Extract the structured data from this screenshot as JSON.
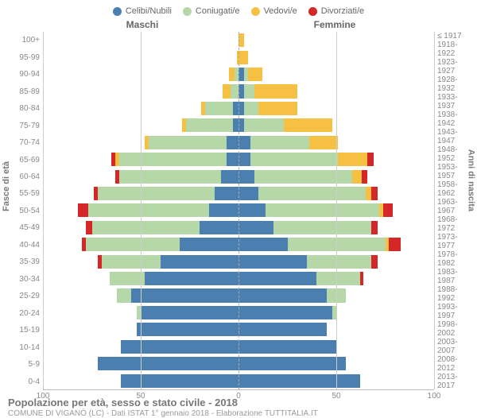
{
  "chart": {
    "type": "population-pyramid",
    "background_color": "#ffffff",
    "grid_color": "#cccccc",
    "center_line_color": "#aaaaaa",
    "text_color": "#888888",
    "title_fontsize": 13,
    "label_fontsize": 10,
    "legend_fontsize": 11,
    "xmax": 100,
    "xticks": [
      100,
      50,
      0,
      50,
      100
    ],
    "legend": [
      {
        "label": "Celibi/Nubili",
        "color": "#4a7fb0"
      },
      {
        "label": "Coniugati/e",
        "color": "#b6d7a8"
      },
      {
        "label": "Vedovi/e",
        "color": "#f6c143"
      },
      {
        "label": "Divorziati/e",
        "color": "#d62728"
      }
    ],
    "header_left": "Maschi",
    "header_right": "Femmine",
    "ylabel_left": "Fasce di età",
    "ylabel_right": "Anni di nascita",
    "age_labels": [
      "100+",
      "95-99",
      "90-94",
      "85-89",
      "80-84",
      "75-79",
      "70-74",
      "65-69",
      "60-64",
      "55-59",
      "50-54",
      "45-49",
      "40-44",
      "35-39",
      "30-34",
      "25-29",
      "20-24",
      "15-19",
      "10-14",
      "5-9",
      "0-4"
    ],
    "birth_labels": [
      "≤ 1917",
      "1918-1922",
      "1923-1927",
      "1928-1932",
      "1933-1937",
      "1938-1942",
      "1943-1947",
      "1948-1952",
      "1953-1957",
      "1958-1962",
      "1963-1967",
      "1968-1972",
      "1973-1977",
      "1978-1982",
      "1983-1987",
      "1988-1992",
      "1993-1997",
      "1998-2002",
      "2003-2007",
      "2008-2012",
      "2013-2017"
    ],
    "rows": [
      {
        "m": [
          0,
          0,
          0,
          0
        ],
        "f": [
          0,
          0,
          3,
          0
        ]
      },
      {
        "m": [
          0,
          0,
          1,
          0
        ],
        "f": [
          0,
          0,
          5,
          0
        ]
      },
      {
        "m": [
          0,
          2,
          3,
          0
        ],
        "f": [
          3,
          2,
          7,
          0
        ]
      },
      {
        "m": [
          0,
          4,
          4,
          0
        ],
        "f": [
          3,
          5,
          22,
          0
        ]
      },
      {
        "m": [
          3,
          14,
          2,
          0
        ],
        "f": [
          3,
          7,
          20,
          0
        ]
      },
      {
        "m": [
          3,
          24,
          2,
          0
        ],
        "f": [
          3,
          20,
          25,
          0
        ]
      },
      {
        "m": [
          6,
          40,
          2,
          0
        ],
        "f": [
          6,
          30,
          15,
          0
        ]
      },
      {
        "m": [
          6,
          55,
          2,
          2
        ],
        "f": [
          6,
          45,
          15,
          3
        ]
      },
      {
        "m": [
          9,
          52,
          0,
          2
        ],
        "f": [
          8,
          50,
          5,
          3
        ]
      },
      {
        "m": [
          12,
          60,
          0,
          2
        ],
        "f": [
          10,
          55,
          3,
          3
        ]
      },
      {
        "m": [
          15,
          62,
          0,
          5
        ],
        "f": [
          14,
          58,
          2,
          5
        ]
      },
      {
        "m": [
          20,
          55,
          0,
          3
        ],
        "f": [
          18,
          50,
          0,
          3
        ]
      },
      {
        "m": [
          30,
          48,
          0,
          2
        ],
        "f": [
          25,
          50,
          2,
          6
        ]
      },
      {
        "m": [
          40,
          30,
          0,
          2
        ],
        "f": [
          35,
          33,
          0,
          3
        ]
      },
      {
        "m": [
          48,
          18,
          0,
          0
        ],
        "f": [
          40,
          22,
          0,
          2
        ]
      },
      {
        "m": [
          55,
          7,
          0,
          0
        ],
        "f": [
          45,
          10,
          0,
          0
        ]
      },
      {
        "m": [
          50,
          2,
          0,
          0
        ],
        "f": [
          48,
          2,
          0,
          0
        ]
      },
      {
        "m": [
          52,
          0,
          0,
          0
        ],
        "f": [
          45,
          0,
          0,
          0
        ]
      },
      {
        "m": [
          60,
          0,
          0,
          0
        ],
        "f": [
          50,
          0,
          0,
          0
        ]
      },
      {
        "m": [
          72,
          0,
          0,
          0
        ],
        "f": [
          55,
          0,
          0,
          0
        ]
      },
      {
        "m": [
          60,
          0,
          0,
          0
        ],
        "f": [
          62,
          0,
          0,
          0
        ]
      }
    ],
    "footer_title": "Popolazione per età, sesso e stato civile - 2018",
    "footer_sub": "COMUNE DI VIGANÒ (LC) - Dati ISTAT 1° gennaio 2018 - Elaborazione TUTTITALIA.IT"
  }
}
